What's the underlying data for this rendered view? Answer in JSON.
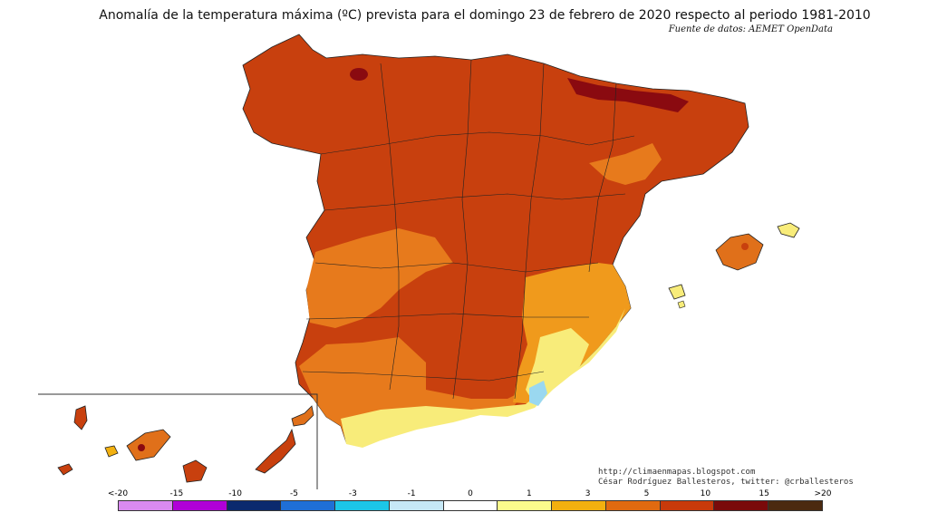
{
  "map": {
    "title": "Anomalía de la temperatura máxima (ºC) prevista para el domingo 23 de febrero de 2020 respecto al periodo 1981-2010",
    "source": "Fuente de datos: AEMET OpenData",
    "credits": {
      "blog": "http://climaenmapas.blogspot.com",
      "author": "César Rodríguez Ballesteros, twitter: @crballesteros"
    },
    "regions": [
      "Península Ibérica",
      "Islas Baleares",
      "Islas Canarias"
    ]
  },
  "legend": {
    "labels": [
      "<-20",
      "-15",
      "-10",
      "-5",
      "-3",
      "-1",
      "0",
      "1",
      "3",
      "5",
      "10",
      "15",
      ">20"
    ],
    "colors": [
      "#d98af0",
      "#b000d8",
      "#0b2a6e",
      "#1f6fd6",
      "#1cc6e8",
      "#c6e8f6",
      "#ffffff",
      "#fbfb8c",
      "#f2b00f",
      "#e06a10",
      "#c83a0a",
      "#7a0a0a",
      "#4b2a10"
    ]
  },
  "palette": {
    "very_warm": "#c8400e",
    "warm": "#e0701a",
    "mild": "#f0a020",
    "slight": "#f8f080",
    "hot_spot": "#8a0a10",
    "cool": "#9ad8f0"
  }
}
